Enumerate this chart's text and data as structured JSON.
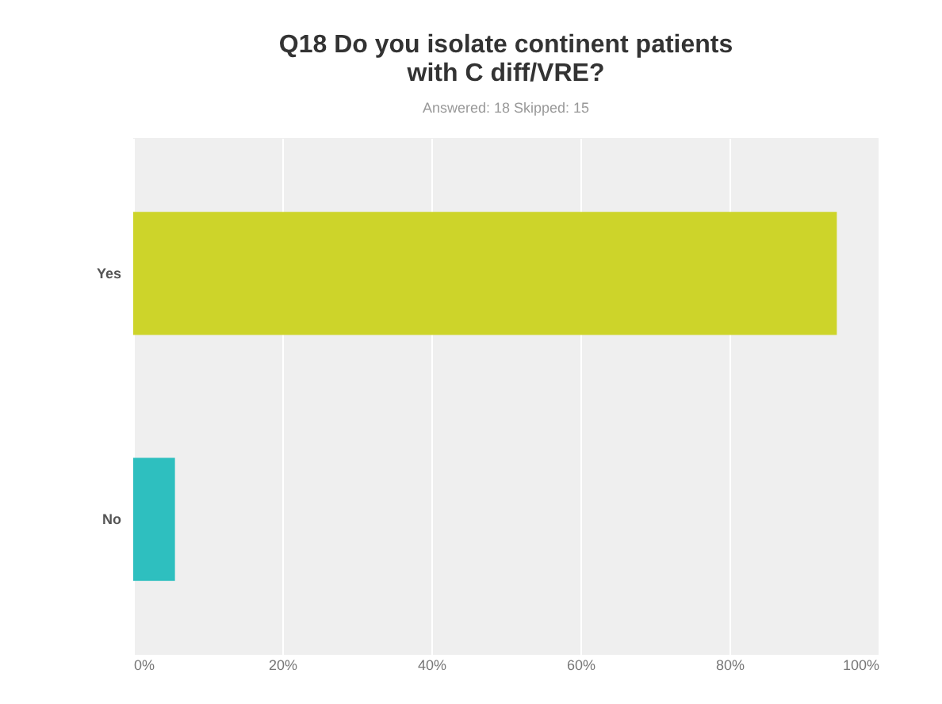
{
  "chart_data": {
    "type": "bar",
    "orientation": "horizontal",
    "title": "Q18 Do you isolate continent patients with C diff/VRE?",
    "subtitle": "Answered: 18    Skipped: 15",
    "categories": [
      "Yes",
      "No"
    ],
    "values": [
      94.4,
      5.6
    ],
    "colors": [
      "#cdd42a",
      "#2ebfbf"
    ],
    "xlim": [
      0,
      100
    ],
    "xticks": [
      {
        "value": 0,
        "label": "0%"
      },
      {
        "value": 20,
        "label": "20%"
      },
      {
        "value": 40,
        "label": "40%"
      },
      {
        "value": 60,
        "label": "60%"
      },
      {
        "value": 80,
        "label": "80%"
      },
      {
        "value": 100,
        "label": "100%"
      }
    ],
    "grid": "x"
  }
}
